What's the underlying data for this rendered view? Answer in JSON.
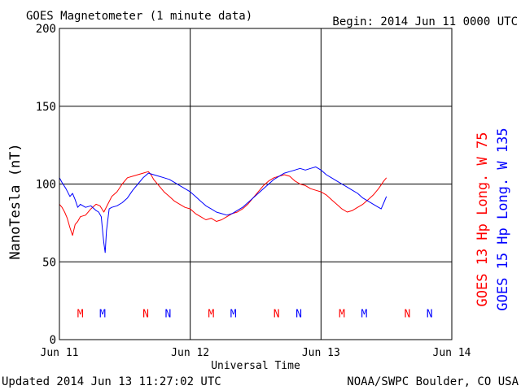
{
  "chart_data": {
    "type": "line",
    "title": "GOES Magnetometer (1 minute data)",
    "begin_label": "Begin:  2014 Jun 11 0000 UTC",
    "ylabel": "NanoTesla (nT)",
    "xlabel": "Universal Time",
    "ylim": [
      0,
      200
    ],
    "y_ticks": [
      0,
      50,
      100,
      150,
      200
    ],
    "xlim": [
      0,
      3
    ],
    "x_ticks": [
      {
        "x": 0,
        "label": "Jun 11"
      },
      {
        "x": 1,
        "label": "Jun 12"
      },
      {
        "x": 2,
        "label": "Jun 13"
      },
      {
        "x": 3,
        "label": "Jun 14"
      }
    ],
    "grid": true,
    "series": [
      {
        "name": "GOES 13 Hp  Long. W 75",
        "color": "#ff0000",
        "points": [
          [
            0.0,
            87
          ],
          [
            0.02,
            85
          ],
          [
            0.04,
            82
          ],
          [
            0.06,
            78
          ],
          [
            0.08,
            72
          ],
          [
            0.1,
            67
          ],
          [
            0.12,
            74
          ],
          [
            0.14,
            76
          ],
          [
            0.16,
            79
          ],
          [
            0.2,
            80
          ],
          [
            0.24,
            84
          ],
          [
            0.28,
            87
          ],
          [
            0.31,
            86
          ],
          [
            0.34,
            82
          ],
          [
            0.37,
            87
          ],
          [
            0.4,
            92
          ],
          [
            0.44,
            95
          ],
          [
            0.48,
            100
          ],
          [
            0.52,
            104
          ],
          [
            0.56,
            105
          ],
          [
            0.6,
            106
          ],
          [
            0.64,
            107
          ],
          [
            0.68,
            108
          ],
          [
            0.7,
            106
          ],
          [
            0.72,
            103
          ],
          [
            0.76,
            99
          ],
          [
            0.8,
            95
          ],
          [
            0.84,
            92
          ],
          [
            0.88,
            89
          ],
          [
            0.92,
            87
          ],
          [
            0.96,
            85
          ],
          [
            1.0,
            84
          ],
          [
            1.04,
            81
          ],
          [
            1.08,
            79
          ],
          [
            1.12,
            77
          ],
          [
            1.16,
            78
          ],
          [
            1.2,
            76
          ],
          [
            1.24,
            77
          ],
          [
            1.28,
            79
          ],
          [
            1.32,
            81
          ],
          [
            1.36,
            82
          ],
          [
            1.4,
            84
          ],
          [
            1.44,
            87
          ],
          [
            1.48,
            91
          ],
          [
            1.52,
            95
          ],
          [
            1.56,
            99
          ],
          [
            1.6,
            102
          ],
          [
            1.64,
            104
          ],
          [
            1.68,
            105
          ],
          [
            1.72,
            106
          ],
          [
            1.76,
            105
          ],
          [
            1.8,
            102
          ],
          [
            1.84,
            100
          ],
          [
            1.88,
            99
          ],
          [
            1.92,
            97
          ],
          [
            1.96,
            96
          ],
          [
            2.0,
            95
          ],
          [
            2.04,
            93
          ],
          [
            2.08,
            90
          ],
          [
            2.12,
            87
          ],
          [
            2.16,
            84
          ],
          [
            2.2,
            82
          ],
          [
            2.24,
            83
          ],
          [
            2.28,
            85
          ],
          [
            2.32,
            87
          ],
          [
            2.36,
            90
          ],
          [
            2.4,
            93
          ],
          [
            2.44,
            97
          ],
          [
            2.48,
            102
          ],
          [
            2.5,
            104
          ]
        ]
      },
      {
        "name": "GOES 15 Hp  Long. W 135",
        "color": "#0000ff",
        "points": [
          [
            0.0,
            104
          ],
          [
            0.02,
            101
          ],
          [
            0.05,
            97
          ],
          [
            0.08,
            92
          ],
          [
            0.1,
            94
          ],
          [
            0.12,
            90
          ],
          [
            0.14,
            85
          ],
          [
            0.16,
            87
          ],
          [
            0.2,
            85
          ],
          [
            0.24,
            86
          ],
          [
            0.28,
            83
          ],
          [
            0.3,
            82
          ],
          [
            0.32,
            79
          ],
          [
            0.33,
            70
          ],
          [
            0.34,
            62
          ],
          [
            0.35,
            56
          ],
          [
            0.36,
            70
          ],
          [
            0.38,
            84
          ],
          [
            0.4,
            85
          ],
          [
            0.44,
            86
          ],
          [
            0.48,
            88
          ],
          [
            0.52,
            91
          ],
          [
            0.56,
            96
          ],
          [
            0.6,
            100
          ],
          [
            0.64,
            104
          ],
          [
            0.68,
            107
          ],
          [
            0.72,
            106
          ],
          [
            0.76,
            105
          ],
          [
            0.8,
            104
          ],
          [
            0.84,
            103
          ],
          [
            0.88,
            101
          ],
          [
            0.92,
            99
          ],
          [
            0.96,
            97
          ],
          [
            1.0,
            95
          ],
          [
            1.04,
            92
          ],
          [
            1.08,
            89
          ],
          [
            1.12,
            86
          ],
          [
            1.16,
            84
          ],
          [
            1.2,
            82
          ],
          [
            1.24,
            81
          ],
          [
            1.28,
            80
          ],
          [
            1.32,
            81
          ],
          [
            1.36,
            83
          ],
          [
            1.4,
            85
          ],
          [
            1.44,
            88
          ],
          [
            1.48,
            91
          ],
          [
            1.52,
            94
          ],
          [
            1.56,
            97
          ],
          [
            1.6,
            100
          ],
          [
            1.64,
            103
          ],
          [
            1.68,
            105
          ],
          [
            1.72,
            107
          ],
          [
            1.76,
            108
          ],
          [
            1.8,
            109
          ],
          [
            1.84,
            110
          ],
          [
            1.88,
            109
          ],
          [
            1.92,
            110
          ],
          [
            1.96,
            111
          ],
          [
            2.0,
            109
          ],
          [
            2.04,
            106
          ],
          [
            2.08,
            104
          ],
          [
            2.12,
            102
          ],
          [
            2.16,
            100
          ],
          [
            2.2,
            98
          ],
          [
            2.24,
            96
          ],
          [
            2.28,
            94
          ],
          [
            2.32,
            91
          ],
          [
            2.36,
            89
          ],
          [
            2.4,
            87
          ],
          [
            2.44,
            85
          ],
          [
            2.46,
            84
          ],
          [
            2.48,
            88
          ],
          [
            2.5,
            92
          ]
        ]
      }
    ],
    "markers": [
      {
        "x": 0.16,
        "label": "M",
        "series": 0
      },
      {
        "x": 0.33,
        "label": "M",
        "series": 1
      },
      {
        "x": 0.66,
        "label": "N",
        "series": 0
      },
      {
        "x": 0.83,
        "label": "N",
        "series": 1
      },
      {
        "x": 1.16,
        "label": "M",
        "series": 0
      },
      {
        "x": 1.33,
        "label": "M",
        "series": 1
      },
      {
        "x": 1.66,
        "label": "N",
        "series": 0
      },
      {
        "x": 1.83,
        "label": "N",
        "series": 1
      },
      {
        "x": 2.16,
        "label": "M",
        "series": 0
      },
      {
        "x": 2.33,
        "label": "M",
        "series": 1
      },
      {
        "x": 2.66,
        "label": "N",
        "series": 0
      },
      {
        "x": 2.83,
        "label": "N",
        "series": 1
      }
    ],
    "marker_level": 17
  },
  "footer": {
    "updated": "Updated 2014 Jun 13 11:27:02 UTC",
    "source": "NOAA/SWPC Boulder, CO USA"
  }
}
